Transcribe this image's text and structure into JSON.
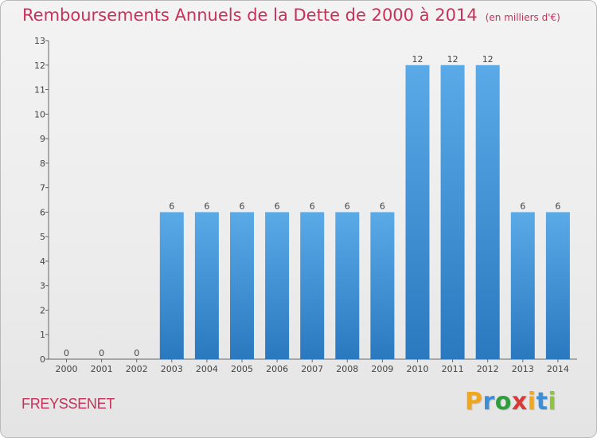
{
  "chart_data": {
    "type": "bar",
    "title": "Remboursements Annuels de la Dette de 2000 à 2014",
    "subtitle": "(en milliers d'€)",
    "categories": [
      "2000",
      "2001",
      "2002",
      "2003",
      "2004",
      "2005",
      "2006",
      "2007",
      "2008",
      "2009",
      "2010",
      "2011",
      "2012",
      "2013",
      "2014"
    ],
    "values": [
      0,
      0,
      0,
      6,
      6,
      6,
      6,
      6,
      6,
      6,
      12,
      12,
      12,
      6,
      6
    ],
    "ylim": [
      0,
      13
    ],
    "yticks": [
      0,
      1,
      2,
      3,
      4,
      5,
      6,
      7,
      8,
      9,
      10,
      11,
      12,
      13
    ],
    "xlabel": "",
    "ylabel": "",
    "grid": false,
    "bar_color_top": "#5aaae8",
    "bar_color_bottom": "#2a79bf"
  },
  "footer": {
    "commune": "FREYSSENET",
    "logo_letters": [
      "P",
      "r",
      "o",
      "x",
      "i",
      "t",
      "i"
    ],
    "logo_colors": [
      "#f2a71b",
      "#3a8fd8",
      "#2e9e3c",
      "#d63a3a",
      "#f2a71b",
      "#3a8fd8",
      "#8cc63f"
    ]
  }
}
